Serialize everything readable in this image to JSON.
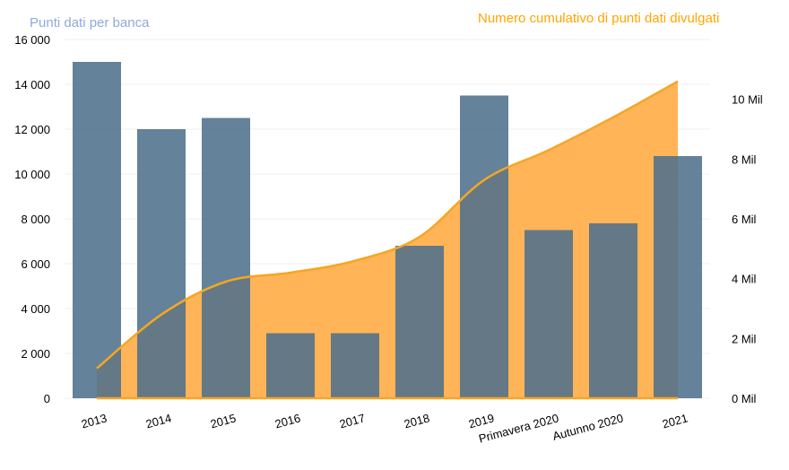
{
  "chart_data": {
    "type": "bar",
    "categories": [
      "2013",
      "2014",
      "2015",
      "2016",
      "2017",
      "2018",
      "2019",
      "Primavera 2020",
      "Autunno 2020",
      "2021"
    ],
    "series": [
      {
        "name": "Punti dati per banca",
        "type": "bar",
        "axis": "left",
        "values": [
          15000,
          12000,
          12500,
          2900,
          2900,
          6800,
          13500,
          7500,
          7800,
          10800
        ]
      },
      {
        "name": "Numero cumulativo di punti dati divulgati",
        "type": "area",
        "axis": "right",
        "values": [
          1.0,
          2.8,
          3.9,
          4.2,
          4.6,
          5.4,
          7.3,
          8.3,
          9.4,
          10.6
        ]
      }
    ],
    "left_axis": {
      "title": "Punti dati per banca",
      "ylim": [
        0,
        16000
      ],
      "ticks": [
        0,
        2000,
        4000,
        6000,
        8000,
        10000,
        12000,
        14000,
        16000
      ],
      "tick_labels": [
        "0",
        "2 000",
        "4 000",
        "6 000",
        "8 000",
        "10 000",
        "12 000",
        "14 000",
        "16 000"
      ]
    },
    "right_axis": {
      "title": "Numero cumulativo di punti dati divulgati",
      "ylim": [
        0,
        12
      ],
      "ticks": [
        0,
        2,
        4,
        6,
        8,
        10
      ],
      "tick_labels": [
        "0 Mil",
        "2 Mil",
        "4 Mil",
        "6 Mil",
        "8 Mil",
        "10 Mil"
      ]
    },
    "grid": true,
    "colors": {
      "bar": "#4f718b",
      "area_fill": "#ffb04f",
      "line": "#f5a623",
      "left_title": "#8eaadb",
      "right_title": "#ffa500",
      "grid": "#efefef"
    }
  }
}
